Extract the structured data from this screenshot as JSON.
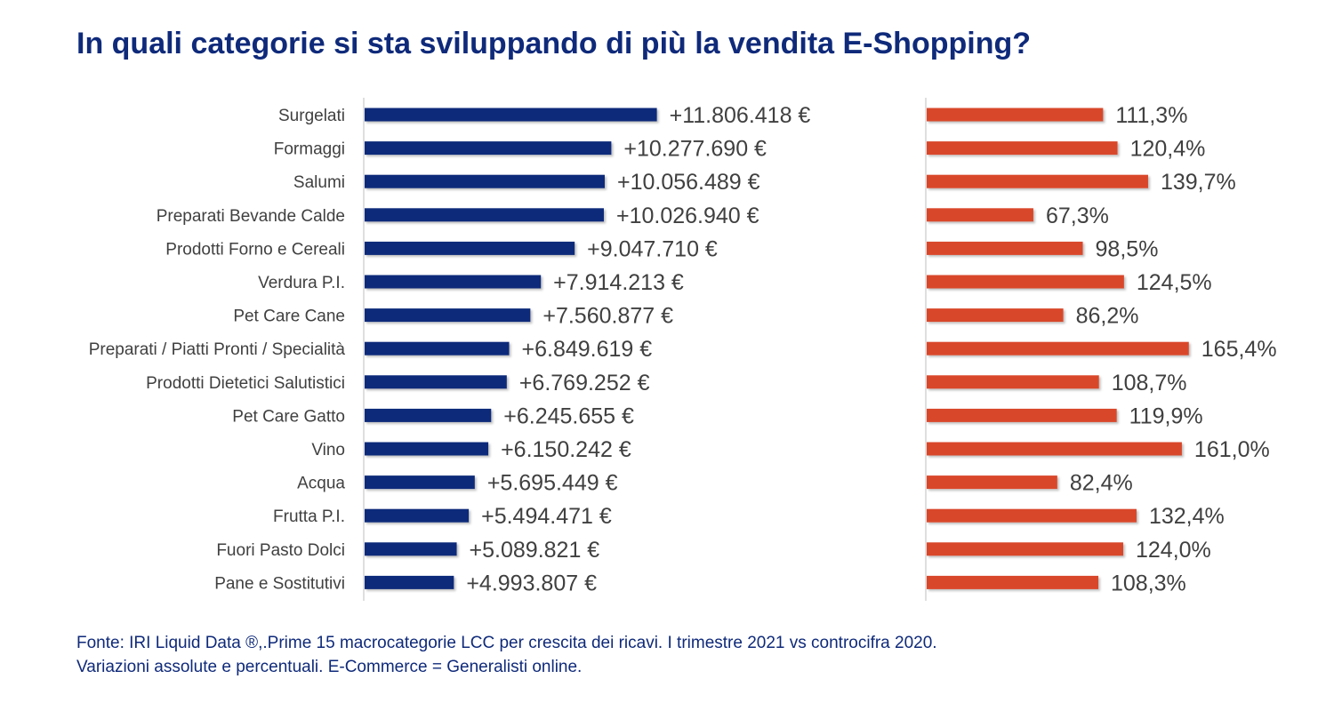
{
  "title": "In quali categorie si sta sviluppando di più la vendita E-Shopping?",
  "footnote": {
    "line1": "Fonte: IRI Liquid Data ®,.Prime 15 macrocategorie LCC per crescita dei ricavi. I trimestre 2021 vs controcifra 2020.",
    "line2": "Variazioni assolute e percentuali. E-Commerce = Generalisti online."
  },
  "colors": {
    "title": "#0f2a7a",
    "absolute_bars": "#0f2a7a",
    "percent_bars": "#d9472b",
    "axis": "#bfbfbf",
    "text": "#404040"
  },
  "chart_data": [
    {
      "type": "bar",
      "orientation": "horizontal",
      "categories": [
        "Surgelati",
        "Formaggi",
        "Salumi",
        "Preparati Bevande Calde",
        "Prodotti Forno e Cereali",
        "Verdura P.I.",
        "Pet Care Cane",
        "Preparati / Piatti Pronti / Specialità",
        "Prodotti Dietetici Salutistici",
        "Pet Care Gatto",
        "Vino",
        "Acqua",
        "Frutta P.I.",
        "Fuori Pasto Dolci",
        "Pane e Sostitutivi"
      ],
      "values": [
        11806418,
        10277690,
        10056489,
        10026940,
        9047710,
        7914213,
        7560877,
        6849619,
        6769252,
        6245655,
        6150242,
        5695449,
        5494471,
        5089821,
        4993807
      ],
      "data_labels": [
        "+11.806.418 €",
        "+10.277.690 €",
        "+10.056.489 €",
        "+10.026.940 €",
        "+9.047.710 €",
        "+7.914.213 €",
        "+7.560.877 €",
        "+6.849.619 €",
        "+6.769.252 €",
        "+6.245.655 €",
        "+6.150.242 €",
        "+5.695.449 €",
        "+5.494.471 €",
        "+5.089.821 €",
        "+4.993.807 €"
      ],
      "xlim": [
        2000000,
        14000000
      ],
      "grid": false
    },
    {
      "type": "bar",
      "orientation": "horizontal",
      "categories": [
        "Surgelati",
        "Formaggi",
        "Salumi",
        "Preparati Bevande Calde",
        "Prodotti Forno e Cereali",
        "Verdura P.I.",
        "Pet Care Cane",
        "Preparati / Piatti Pronti / Specialità",
        "Prodotti Dietetici Salutistici",
        "Pet Care Gatto",
        "Vino",
        "Acqua",
        "Frutta P.I.",
        "Fuori Pasto Dolci",
        "Pane e Sostitutivi"
      ],
      "values": [
        111.3,
        120.4,
        139.7,
        67.3,
        98.5,
        124.5,
        86.2,
        165.4,
        108.7,
        119.9,
        161.0,
        82.4,
        132.4,
        124.0,
        108.3
      ],
      "data_labels": [
        "111,3%",
        "120,4%",
        "139,7%",
        "67,3%",
        "98,5%",
        "124,5%",
        "86,2%",
        "165,4%",
        "108,7%",
        "119,9%",
        "161,0%",
        "82,4%",
        "132,4%",
        "124,0%",
        "108,3%"
      ],
      "xlim": [
        0,
        186
      ],
      "grid": false
    }
  ]
}
